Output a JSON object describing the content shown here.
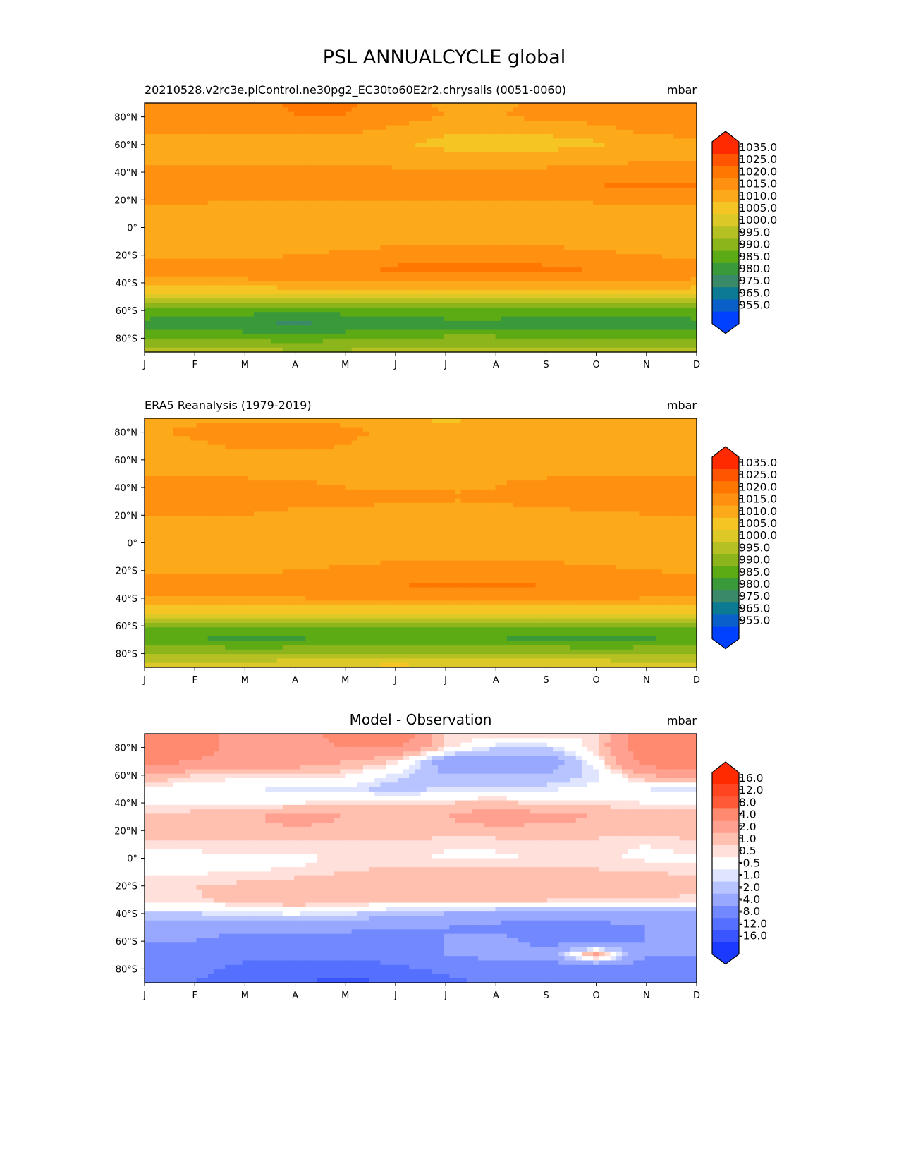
{
  "title": "PSL ANNUALCYCLE global",
  "chart_data": [
    {
      "type": "heatmap",
      "subtitle": "20210528.v2rc3e.piControl.ne30pg2_EC30to60E2r2.chrysalis (0051-0060)",
      "center_title": "",
      "units": "mbar",
      "x": [
        "J",
        "F",
        "M",
        "A",
        "M",
        "J",
        "J",
        "A",
        "S",
        "O",
        "N",
        "D"
      ],
      "y_ticks": [
        80,
        60,
        40,
        20,
        0,
        -20,
        -40,
        -60,
        -80
      ],
      "y_tick_labels": [
        "80°N",
        "60°N",
        "40°N",
        "20°N",
        "0°",
        "20°S",
        "40°S",
        "60°S",
        "80°S"
      ],
      "lat": [
        90,
        80,
        70,
        60,
        50,
        40,
        30,
        20,
        10,
        0,
        -10,
        -20,
        -30,
        -40,
        -50,
        -60,
        -70,
        -80,
        -90
      ],
      "values": [
        [
          1019,
          1018,
          1017,
          1021,
          1021,
          1018,
          1014,
          1014,
          1016,
          1017,
          1018,
          1018
        ],
        [
          1018,
          1017,
          1017,
          1020,
          1020,
          1017,
          1015,
          1015,
          1016,
          1017,
          1018,
          1018
        ],
        [
          1016,
          1016,
          1016,
          1016,
          1016,
          1014,
          1011,
          1011,
          1011,
          1013,
          1016,
          1016
        ],
        [
          1013,
          1013,
          1012,
          1012,
          1012,
          1011,
          1008,
          1008,
          1008,
          1009,
          1013,
          1014
        ],
        [
          1014,
          1014,
          1014,
          1014,
          1014,
          1013,
          1013,
          1013,
          1013,
          1013,
          1014,
          1015
        ],
        [
          1016,
          1016,
          1016,
          1016,
          1016,
          1016,
          1016,
          1016,
          1016,
          1017,
          1018,
          1018
        ],
        [
          1017,
          1017,
          1017,
          1017,
          1017,
          1017,
          1017,
          1017,
          1018,
          1020,
          1021,
          1021
        ],
        [
          1016,
          1016,
          1015,
          1015,
          1015,
          1015,
          1015,
          1015,
          1015,
          1016,
          1016,
          1016
        ],
        [
          1013,
          1013,
          1012,
          1012,
          1012,
          1012,
          1012,
          1012,
          1012,
          1012,
          1012,
          1013
        ],
        [
          1011,
          1011,
          1011,
          1011,
          1011,
          1011,
          1011,
          1011,
          1011,
          1011,
          1011,
          1011
        ],
        [
          1012,
          1012,
          1012,
          1012,
          1013,
          1014,
          1014,
          1014,
          1014,
          1013,
          1013,
          1012
        ],
        [
          1014,
          1014,
          1014,
          1015,
          1016,
          1017,
          1017,
          1017,
          1017,
          1016,
          1015,
          1014
        ],
        [
          1017,
          1017,
          1017,
          1018,
          1019,
          1021,
          1022,
          1022,
          1021,
          1020,
          1018,
          1017
        ],
        [
          1014,
          1014,
          1014,
          1015,
          1015,
          1015,
          1015,
          1015,
          1015,
          1015,
          1015,
          1014
        ],
        [
          1002,
          1002,
          1001,
          1001,
          1002,
          1003,
          1003,
          1003,
          1003,
          1003,
          1003,
          1002
        ],
        [
          988,
          988,
          987,
          986,
          987,
          988,
          988,
          988,
          987,
          987,
          987,
          988
        ],
        [
          983,
          982,
          980,
          979,
          980,
          982,
          983,
          983,
          982,
          982,
          983,
          983
        ],
        [
          990,
          990,
          989,
          988,
          989,
          990,
          991,
          991,
          991,
          990,
          989,
          990
        ],
        [
          997,
          997,
          997,
          996,
          996,
          997,
          997,
          997,
          997,
          997,
          998,
          997
        ]
      ],
      "levels": [
        955,
        965,
        975,
        980,
        985,
        990,
        995,
        1000,
        1005,
        1010,
        1015,
        1020,
        1025,
        1035
      ],
      "level_labels": [
        "955.0",
        "965.0",
        "975.0",
        "980.0",
        "985.0",
        "990.0",
        "995.0",
        "1000.0",
        "1005.0",
        "1010.0",
        "1015.0",
        "1020.0",
        "1025.0",
        "1035.0"
      ],
      "colors": [
        "#0040ff",
        "#0a60c8",
        "#0d7a94",
        "#3a8a6a",
        "#3a9a3a",
        "#5cab14",
        "#8cb51c",
        "#b5c022",
        "#dcc826",
        "#f5c523",
        "#fca91a",
        "#ff9010",
        "#ff7700",
        "#ff5500",
        "#ff2a00"
      ]
    },
    {
      "type": "heatmap",
      "subtitle": "ERA5 Reanalysis (1979-2019)",
      "center_title": "",
      "units": "mbar",
      "x": [
        "J",
        "F",
        "M",
        "A",
        "M",
        "J",
        "J",
        "A",
        "S",
        "O",
        "N",
        "D"
      ],
      "y_ticks": [
        80,
        60,
        40,
        20,
        0,
        -20,
        -40,
        -60,
        -80
      ],
      "y_tick_labels": [
        "80°N",
        "60°N",
        "40°N",
        "20°N",
        "0°",
        "20°S",
        "40°S",
        "60°S",
        "80°S"
      ],
      "lat": [
        90,
        80,
        70,
        60,
        50,
        40,
        30,
        20,
        10,
        0,
        -10,
        -20,
        -30,
        -40,
        -50,
        -60,
        -70,
        -80,
        -90
      ],
      "values": [
        [
          1014,
          1014,
          1014,
          1014,
          1014,
          1014,
          1008,
          1012,
          1014,
          1014,
          1014,
          1014
        ],
        [
          1014,
          1016,
          1017,
          1017,
          1016,
          1014,
          1013,
          1013,
          1013,
          1013,
          1014,
          1014
        ],
        [
          1013,
          1014,
          1016,
          1016,
          1015,
          1013,
          1013,
          1013,
          1013,
          1013,
          1013,
          1013
        ],
        [
          1013,
          1013,
          1013,
          1013,
          1013,
          1013,
          1013,
          1013,
          1013,
          1013,
          1013,
          1013
        ],
        [
          1014,
          1014,
          1014,
          1014,
          1014,
          1014,
          1014,
          1014,
          1014,
          1014,
          1014,
          1014
        ],
        [
          1017,
          1017,
          1017,
          1016,
          1015,
          1015,
          1015,
          1015,
          1017,
          1017,
          1017,
          1017
        ],
        [
          1017,
          1017,
          1017,
          1016,
          1016,
          1015,
          1015,
          1015,
          1016,
          1017,
          1017,
          1017
        ],
        [
          1015,
          1015,
          1015,
          1014,
          1014,
          1014,
          1014,
          1014,
          1014,
          1014,
          1015,
          1015
        ],
        [
          1012,
          1012,
          1012,
          1012,
          1012,
          1012,
          1012,
          1012,
          1012,
          1012,
          1012,
          1012
        ],
        [
          1011,
          1011,
          1011,
          1011,
          1011,
          1011,
          1011,
          1011,
          1011,
          1011,
          1011,
          1011
        ],
        [
          1012,
          1012,
          1012,
          1012,
          1013,
          1014,
          1014,
          1014,
          1014,
          1013,
          1013,
          1012
        ],
        [
          1014,
          1014,
          1014,
          1015,
          1016,
          1017,
          1017,
          1017,
          1017,
          1016,
          1015,
          1014
        ],
        [
          1017,
          1017,
          1017,
          1018,
          1019,
          1020,
          1021,
          1021,
          1020,
          1019,
          1018,
          1017
        ],
        [
          1015,
          1015,
          1015,
          1015,
          1016,
          1016,
          1016,
          1016,
          1016,
          1016,
          1015,
          1015
        ],
        [
          1005,
          1005,
          1005,
          1005,
          1005,
          1006,
          1006,
          1006,
          1006,
          1006,
          1006,
          1005
        ],
        [
          991,
          991,
          991,
          991,
          991,
          991,
          990,
          990,
          990,
          990,
          991,
          991
        ],
        [
          986,
          985,
          983,
          984,
          986,
          986,
          986,
          985,
          983,
          982,
          984,
          986
        ],
        [
          995,
          995,
          995,
          995,
          996,
          996,
          996,
          996,
          996,
          996,
          995,
          995
        ],
        [
          1004,
          1004,
          1004,
          1005,
          1006,
          1007,
          1006,
          1005,
          1004,
          1004,
          1004,
          1004
        ]
      ],
      "levels": [
        955,
        965,
        975,
        980,
        985,
        990,
        995,
        1000,
        1005,
        1010,
        1015,
        1020,
        1025,
        1035
      ],
      "level_labels": [
        "955.0",
        "965.0",
        "975.0",
        "980.0",
        "985.0",
        "990.0",
        "995.0",
        "1000.0",
        "1005.0",
        "1010.0",
        "1015.0",
        "1020.0",
        "1025.0",
        "1035.0"
      ],
      "colors": [
        "#0040ff",
        "#0a60c8",
        "#0d7a94",
        "#3a8a6a",
        "#3a9a3a",
        "#5cab14",
        "#8cb51c",
        "#b5c022",
        "#dcc826",
        "#f5c523",
        "#fca91a",
        "#ff9010",
        "#ff7700",
        "#ff5500",
        "#ff2a00"
      ]
    },
    {
      "type": "heatmap",
      "subtitle": "",
      "center_title": "Model - Observation",
      "units": "mbar",
      "x": [
        "J",
        "F",
        "M",
        "A",
        "M",
        "J",
        "J",
        "A",
        "S",
        "O",
        "N",
        "D"
      ],
      "y_ticks": [
        80,
        60,
        40,
        20,
        0,
        -20,
        -40,
        -60,
        -80
      ],
      "y_tick_labels": [
        "80°N",
        "60°N",
        "40°N",
        "20°N",
        "0°",
        "20°S",
        "40°S",
        "60°S",
        "80°S"
      ],
      "lat": [
        90,
        80,
        70,
        60,
        50,
        40,
        30,
        20,
        10,
        0,
        -10,
        -20,
        -30,
        -40,
        -50,
        -60,
        -70,
        -80,
        -90
      ],
      "values": [
        [
          6,
          5,
          3,
          3,
          5,
          6,
          1,
          1,
          1,
          0.5,
          6,
          6
        ],
        [
          6,
          5,
          3,
          3,
          4,
          4,
          1,
          -1,
          -1,
          1,
          6,
          6
        ],
        [
          5,
          4,
          3,
          3,
          2,
          1,
          -3,
          -3,
          -3,
          0,
          5,
          6
        ],
        [
          2,
          1,
          0.8,
          0.8,
          0.6,
          -0.7,
          -2,
          -2,
          -2,
          -0.7,
          2,
          3
        ],
        [
          0.3,
          0,
          -0.2,
          -1,
          -0.6,
          -1.5,
          -0.8,
          -0.7,
          -0.6,
          -0.3,
          -0.5,
          -0.8
        ],
        [
          0.2,
          0.2,
          0.3,
          0.5,
          0.6,
          0.7,
          1,
          1.2,
          0.8,
          0.7,
          0.5,
          0.4
        ],
        [
          1.2,
          1.5,
          1.8,
          2.5,
          2,
          1.8,
          2,
          3,
          2.5,
          2,
          1.5,
          1.5
        ],
        [
          1.5,
          1.5,
          1.6,
          1.8,
          1.6,
          1.5,
          1.4,
          1.5,
          1.5,
          1.5,
          1.4,
          1.5
        ],
        [
          0.6,
          0.7,
          0.8,
          0.8,
          0.8,
          0.8,
          0.6,
          0.6,
          0.6,
          0.6,
          0.5,
          0.7
        ],
        [
          0.3,
          0.3,
          0.3,
          0.3,
          0.6,
          0.7,
          0.4,
          0.4,
          0.6,
          0.6,
          0.4,
          0.4
        ],
        [
          0.4,
          0.4,
          0.5,
          0.6,
          1,
          1.2,
          1.2,
          1.2,
          1.2,
          1.1,
          1,
          0.8
        ],
        [
          1,
          1,
          1.2,
          1.5,
          1.8,
          2,
          2,
          2,
          2,
          1.9,
          1.8,
          1.3
        ],
        [
          0.8,
          0.9,
          1.5,
          2,
          1.5,
          1.5,
          1.4,
          1.3,
          1.2,
          1,
          1,
          0.7
        ],
        [
          -1,
          -1,
          -0.6,
          -0.4,
          -0.8,
          -1.5,
          -2,
          -2,
          -2.5,
          -2.5,
          -2.5,
          -2.5
        ],
        [
          -2.5,
          -3,
          -3.5,
          -3.5,
          -3.5,
          -4,
          -4,
          -5,
          -5,
          -5,
          -4,
          -4
        ],
        [
          -4,
          -4,
          -5,
          -5,
          -5,
          -5,
          -4,
          -3,
          -5,
          -5,
          -4,
          -4
        ],
        [
          -5,
          -6,
          -7,
          -7,
          -7,
          -6,
          -4,
          -3,
          -3,
          3,
          -4,
          -4
        ],
        [
          -6,
          -7,
          -9,
          -10,
          -10,
          -9,
          -7,
          -6,
          -6,
          -6,
          -5,
          -5
        ],
        [
          -7,
          -8,
          -10,
          -12,
          -13,
          -12,
          -9,
          -7,
          -7,
          -7,
          -6,
          -6
        ]
      ],
      "levels": [
        -16,
        -12,
        -8,
        -4,
        -2,
        -1,
        -0.5,
        0.5,
        1,
        2,
        4,
        8,
        12,
        16
      ],
      "level_labels": [
        "-16.0",
        "-12.0",
        "-8.0",
        "-4.0",
        "-2.0",
        "-1.0",
        "-0.5",
        "0.5",
        "1.0",
        "2.0",
        "4.0",
        "8.0",
        "12.0",
        "16.0"
      ],
      "colors": [
        "#1a3aff",
        "#3a55ff",
        "#5570ff",
        "#7288ff",
        "#98a8ff",
        "#b8c4ff",
        "#dfe4ff",
        "#ffffff",
        "#ffe0da",
        "#ffc0b0",
        "#ffa090",
        "#ff8a70",
        "#ff5a38",
        "#ff4520",
        "#ff2a00"
      ]
    }
  ]
}
